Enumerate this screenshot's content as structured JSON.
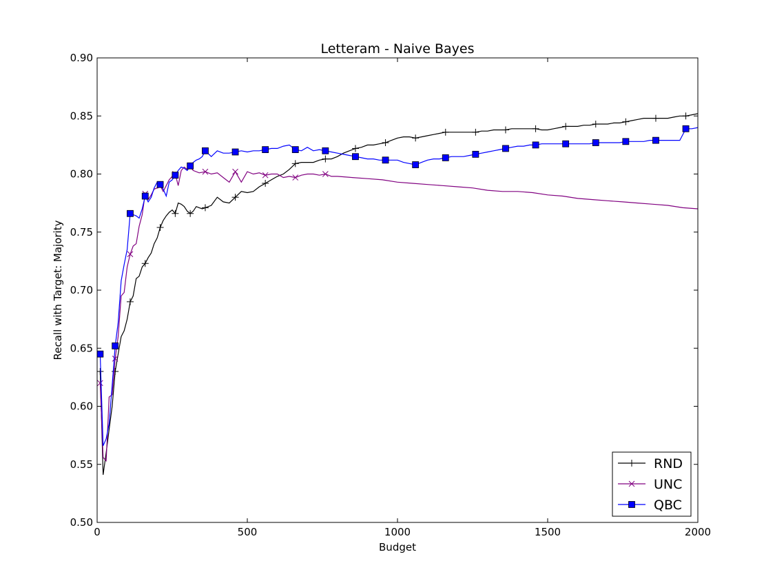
{
  "chart_data": {
    "type": "line",
    "title": "Letteram - Naive Bayes",
    "xlabel": "Budget",
    "ylabel": "Recall with Target: Majority",
    "xlim": [
      0,
      2000
    ],
    "ylim": [
      0.5,
      0.9
    ],
    "xticks": [
      0,
      500,
      1000,
      1500,
      2000
    ],
    "xtick_labels": [
      "0",
      "500",
      "1000",
      "1500",
      "2000"
    ],
    "yticks": [
      0.5,
      0.55,
      0.6,
      0.65,
      0.7,
      0.75,
      0.8,
      0.85,
      0.9
    ],
    "ytick_labels": [
      "0.50",
      "0.55",
      "0.60",
      "0.65",
      "0.70",
      "0.75",
      "0.80",
      "0.85",
      "0.90"
    ],
    "grid": false,
    "legend_position": "lower-right",
    "series": [
      {
        "name": "RND",
        "color": "#000000",
        "marker": "plus",
        "x": [
          10,
          20,
          30,
          40,
          50,
          60,
          70,
          80,
          90,
          100,
          110,
          120,
          130,
          140,
          150,
          160,
          170,
          180,
          190,
          200,
          210,
          220,
          230,
          240,
          250,
          260,
          270,
          280,
          290,
          300,
          310,
          320,
          330,
          340,
          350,
          360,
          380,
          400,
          420,
          440,
          460,
          480,
          500,
          520,
          540,
          560,
          580,
          600,
          620,
          640,
          660,
          680,
          700,
          720,
          740,
          760,
          780,
          800,
          820,
          840,
          860,
          880,
          900,
          920,
          940,
          960,
          980,
          1000,
          1020,
          1040,
          1060,
          1080,
          1100,
          1120,
          1140,
          1160,
          1180,
          1200,
          1220,
          1240,
          1260,
          1280,
          1300,
          1320,
          1340,
          1360,
          1380,
          1400,
          1420,
          1440,
          1460,
          1480,
          1500,
          1520,
          1540,
          1560,
          1580,
          1600,
          1620,
          1640,
          1660,
          1680,
          1700,
          1720,
          1740,
          1760,
          1780,
          1800,
          1820,
          1840,
          1860,
          1880,
          1900,
          1920,
          1940,
          1960,
          1980,
          2000
        ],
        "values": [
          0.63,
          0.541,
          0.56,
          0.58,
          0.6,
          0.63,
          0.645,
          0.66,
          0.665,
          0.675,
          0.69,
          0.695,
          0.71,
          0.712,
          0.72,
          0.723,
          0.728,
          0.732,
          0.74,
          0.745,
          0.754,
          0.76,
          0.764,
          0.767,
          0.769,
          0.766,
          0.775,
          0.774,
          0.772,
          0.768,
          0.766,
          0.768,
          0.772,
          0.771,
          0.77,
          0.771,
          0.773,
          0.78,
          0.776,
          0.775,
          0.78,
          0.785,
          0.784,
          0.785,
          0.789,
          0.792,
          0.795,
          0.798,
          0.8,
          0.804,
          0.809,
          0.81,
          0.81,
          0.81,
          0.812,
          0.813,
          0.813,
          0.815,
          0.818,
          0.82,
          0.822,
          0.823,
          0.825,
          0.825,
          0.826,
          0.827,
          0.829,
          0.831,
          0.832,
          0.832,
          0.831,
          0.832,
          0.833,
          0.834,
          0.835,
          0.836,
          0.836,
          0.836,
          0.836,
          0.836,
          0.836,
          0.837,
          0.837,
          0.838,
          0.838,
          0.838,
          0.839,
          0.839,
          0.839,
          0.839,
          0.839,
          0.838,
          0.838,
          0.839,
          0.84,
          0.841,
          0.841,
          0.841,
          0.842,
          0.842,
          0.843,
          0.843,
          0.843,
          0.844,
          0.844,
          0.845,
          0.846,
          0.847,
          0.848,
          0.848,
          0.848,
          0.848,
          0.848,
          0.849,
          0.85,
          0.85,
          0.851,
          0.852
        ]
      },
      {
        "name": "UNC",
        "color": "#800080",
        "marker": "x",
        "x": [
          10,
          20,
          30,
          40,
          50,
          60,
          70,
          80,
          90,
          100,
          110,
          120,
          130,
          140,
          150,
          160,
          170,
          180,
          190,
          200,
          210,
          220,
          230,
          240,
          250,
          260,
          270,
          280,
          290,
          300,
          310,
          320,
          340,
          360,
          380,
          400,
          420,
          440,
          460,
          480,
          500,
          520,
          540,
          560,
          580,
          600,
          620,
          640,
          660,
          680,
          700,
          720,
          740,
          760,
          780,
          800,
          850,
          900,
          950,
          1000,
          1050,
          1100,
          1150,
          1200,
          1250,
          1300,
          1350,
          1400,
          1450,
          1500,
          1550,
          1600,
          1650,
          1700,
          1750,
          1800,
          1850,
          1900,
          1950,
          2000
        ],
        "values": [
          0.62,
          0.556,
          0.553,
          0.608,
          0.61,
          0.641,
          0.66,
          0.695,
          0.698,
          0.72,
          0.731,
          0.738,
          0.74,
          0.755,
          0.765,
          0.783,
          0.778,
          0.782,
          0.787,
          0.788,
          0.79,
          0.785,
          0.79,
          0.795,
          0.798,
          0.8,
          0.79,
          0.803,
          0.806,
          0.804,
          0.806,
          0.803,
          0.801,
          0.802,
          0.8,
          0.801,
          0.797,
          0.793,
          0.802,
          0.793,
          0.802,
          0.8,
          0.801,
          0.799,
          0.8,
          0.8,
          0.797,
          0.798,
          0.797,
          0.799,
          0.8,
          0.8,
          0.799,
          0.8,
          0.798,
          0.798,
          0.797,
          0.796,
          0.795,
          0.793,
          0.792,
          0.791,
          0.79,
          0.789,
          0.788,
          0.786,
          0.785,
          0.785,
          0.784,
          0.782,
          0.781,
          0.779,
          0.778,
          0.777,
          0.776,
          0.775,
          0.774,
          0.773,
          0.771,
          0.77
        ]
      },
      {
        "name": "QBC",
        "color": "#0000ff",
        "marker": "square",
        "x": [
          10,
          20,
          30,
          40,
          50,
          60,
          70,
          80,
          90,
          100,
          110,
          120,
          130,
          140,
          150,
          160,
          170,
          180,
          190,
          200,
          210,
          220,
          230,
          240,
          250,
          260,
          270,
          280,
          290,
          300,
          310,
          320,
          330,
          340,
          350,
          360,
          380,
          400,
          420,
          440,
          460,
          480,
          500,
          520,
          540,
          560,
          580,
          600,
          620,
          640,
          660,
          680,
          700,
          720,
          740,
          760,
          780,
          800,
          820,
          840,
          860,
          880,
          900,
          920,
          940,
          960,
          980,
          1000,
          1020,
          1040,
          1060,
          1080,
          1100,
          1120,
          1140,
          1160,
          1180,
          1200,
          1220,
          1240,
          1260,
          1280,
          1300,
          1320,
          1340,
          1360,
          1380,
          1400,
          1420,
          1440,
          1460,
          1480,
          1500,
          1520,
          1540,
          1560,
          1580,
          1600,
          1620,
          1640,
          1660,
          1680,
          1700,
          1720,
          1740,
          1760,
          1780,
          1800,
          1820,
          1840,
          1860,
          1880,
          1900,
          1920,
          1940,
          1960,
          1980,
          2000
        ],
        "values": [
          0.645,
          0.566,
          0.572,
          0.585,
          0.618,
          0.652,
          0.672,
          0.708,
          0.722,
          0.735,
          0.766,
          0.765,
          0.764,
          0.762,
          0.77,
          0.781,
          0.776,
          0.78,
          0.788,
          0.793,
          0.791,
          0.787,
          0.781,
          0.793,
          0.795,
          0.799,
          0.803,
          0.806,
          0.805,
          0.803,
          0.807,
          0.81,
          0.812,
          0.813,
          0.815,
          0.82,
          0.815,
          0.82,
          0.818,
          0.818,
          0.819,
          0.82,
          0.819,
          0.82,
          0.82,
          0.821,
          0.822,
          0.822,
          0.824,
          0.825,
          0.821,
          0.82,
          0.823,
          0.82,
          0.821,
          0.82,
          0.819,
          0.818,
          0.817,
          0.816,
          0.815,
          0.814,
          0.813,
          0.813,
          0.812,
          0.812,
          0.812,
          0.812,
          0.81,
          0.809,
          0.808,
          0.81,
          0.812,
          0.813,
          0.813,
          0.814,
          0.815,
          0.815,
          0.815,
          0.816,
          0.817,
          0.818,
          0.819,
          0.82,
          0.821,
          0.822,
          0.823,
          0.824,
          0.824,
          0.825,
          0.825,
          0.826,
          0.826,
          0.826,
          0.826,
          0.826,
          0.826,
          0.826,
          0.826,
          0.826,
          0.827,
          0.827,
          0.827,
          0.827,
          0.827,
          0.828,
          0.828,
          0.828,
          0.828,
          0.829,
          0.829,
          0.829,
          0.829,
          0.829,
          0.829,
          0.839,
          0.839,
          0.84
        ]
      }
    ]
  }
}
